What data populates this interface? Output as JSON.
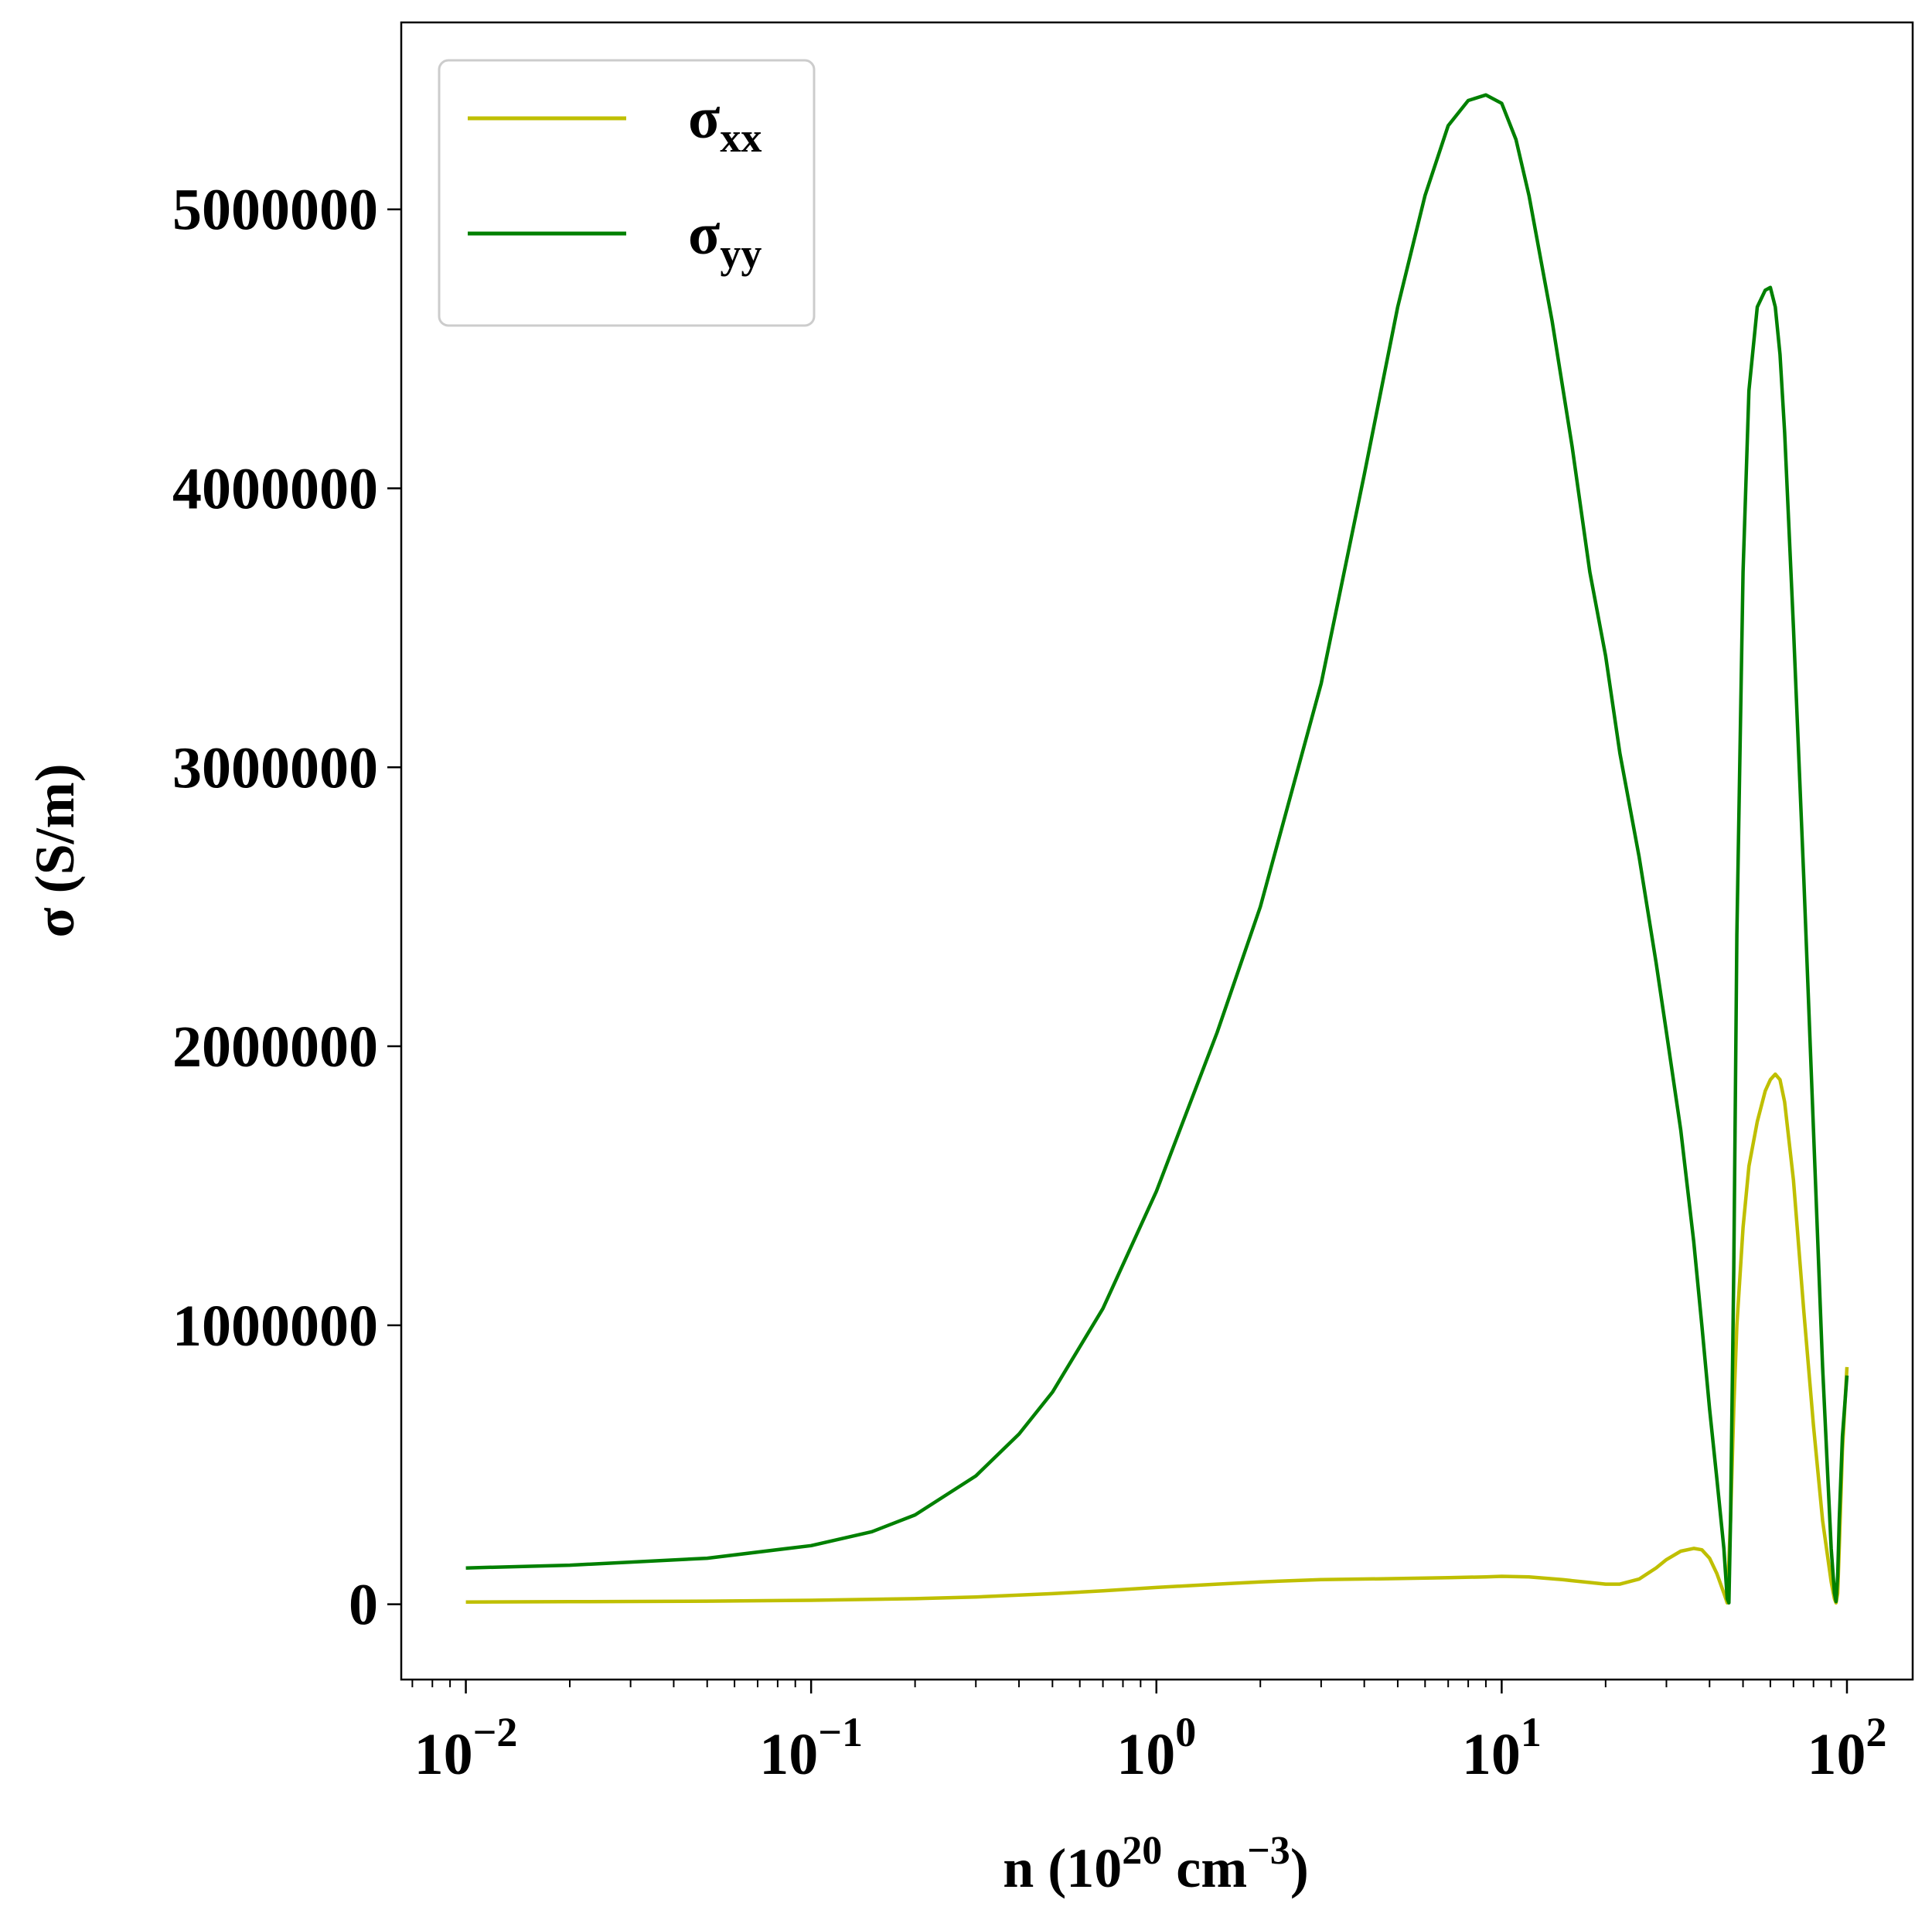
{
  "chart_data": {
    "type": "line",
    "xlabel": {
      "base": "n (10",
      "sup1": "20",
      "mid": " cm",
      "sup2": "−3",
      "end": ")"
    },
    "ylabel": "σ (S/m)",
    "xscale": "log",
    "xlim": [
      0.0065,
      155
    ],
    "ylim": [
      -270000,
      5670000
    ],
    "x_ticks": [
      {
        "base": "10",
        "exp": "−2",
        "value": 0.01
      },
      {
        "base": "10",
        "exp": "−1",
        "value": 0.1
      },
      {
        "base": "10",
        "exp": "0",
        "value": 1
      },
      {
        "base": "10",
        "exp": "1",
        "value": 10
      },
      {
        "base": "10",
        "exp": "2",
        "value": 100
      }
    ],
    "y_ticks": [
      {
        "label": "0",
        "value": 0
      },
      {
        "label": "1000000",
        "value": 1000000
      },
      {
        "label": "2000000",
        "value": 2000000
      },
      {
        "label": "3000000",
        "value": 3000000
      },
      {
        "label": "4000000",
        "value": 4000000
      },
      {
        "label": "5000000",
        "value": 5000000
      }
    ],
    "grid": false,
    "legend_position": "top-left",
    "series": [
      {
        "name": {
          "base": "σ",
          "sub": "xx"
        },
        "color": "#bfbf00",
        "x": [
          0.01,
          0.02,
          0.05,
          0.1,
          0.2,
          0.3,
          0.5,
          0.7,
          1,
          1.5,
          2,
          3,
          5,
          7,
          9,
          10,
          12,
          15,
          18,
          20,
          22,
          25,
          28,
          30,
          33,
          36,
          38,
          40,
          42,
          44,
          45,
          46,
          47,
          48,
          50,
          52,
          55,
          58,
          60,
          62,
          64,
          66,
          70,
          75,
          80,
          85,
          90,
          92,
          93,
          94,
          95,
          97,
          100
        ],
        "y": [
          8000,
          9000,
          11000,
          14000,
          20000,
          26000,
          38000,
          48000,
          60000,
          72000,
          80000,
          88000,
          92000,
          95000,
          98000,
          100000,
          98000,
          88000,
          78000,
          72000,
          72000,
          90000,
          130000,
          160000,
          190000,
          200000,
          195000,
          165000,
          110000,
          40000,
          5000,
          300000,
          700000,
          1000000,
          1350000,
          1570000,
          1730000,
          1840000,
          1880000,
          1900000,
          1880000,
          1800000,
          1520000,
          1050000,
          640000,
          300000,
          80000,
          20000,
          5000,
          40000,
          200000,
          550000,
          850000
        ]
      },
      {
        "name": {
          "base": "σ",
          "sub": "yy"
        },
        "color": "#008000",
        "x": [
          0.01,
          0.02,
          0.05,
          0.1,
          0.15,
          0.2,
          0.3,
          0.4,
          0.5,
          0.7,
          1,
          1.5,
          2,
          3,
          4,
          5,
          6,
          7,
          8,
          9,
          10,
          11,
          12,
          14,
          16,
          18,
          20,
          22,
          25,
          28,
          30,
          33,
          36,
          38,
          40,
          42,
          44,
          45,
          45.5,
          46,
          47,
          48,
          50,
          52,
          55,
          58,
          60,
          62,
          64,
          66,
          70,
          75,
          80,
          85,
          90,
          92,
          93,
          94,
          95,
          97,
          100
        ],
        "y": [
          130000,
          140000,
          165000,
          210000,
          260000,
          320000,
          460000,
          610000,
          760000,
          1060000,
          1480000,
          2050000,
          2500000,
          3300000,
          4050000,
          4650000,
          5050000,
          5300000,
          5390000,
          5410000,
          5380000,
          5250000,
          5050000,
          4600000,
          4150000,
          3700000,
          3400000,
          3050000,
          2680000,
          2300000,
          2050000,
          1700000,
          1300000,
          1000000,
          700000,
          450000,
          200000,
          20000,
          5000,
          300000,
          1200000,
          2400000,
          3700000,
          4350000,
          4650000,
          4710000,
          4720000,
          4650000,
          4480000,
          4200000,
          3500000,
          2600000,
          1700000,
          850000,
          200000,
          40000,
          10000,
          100000,
          300000,
          600000,
          820000
        ]
      }
    ]
  }
}
